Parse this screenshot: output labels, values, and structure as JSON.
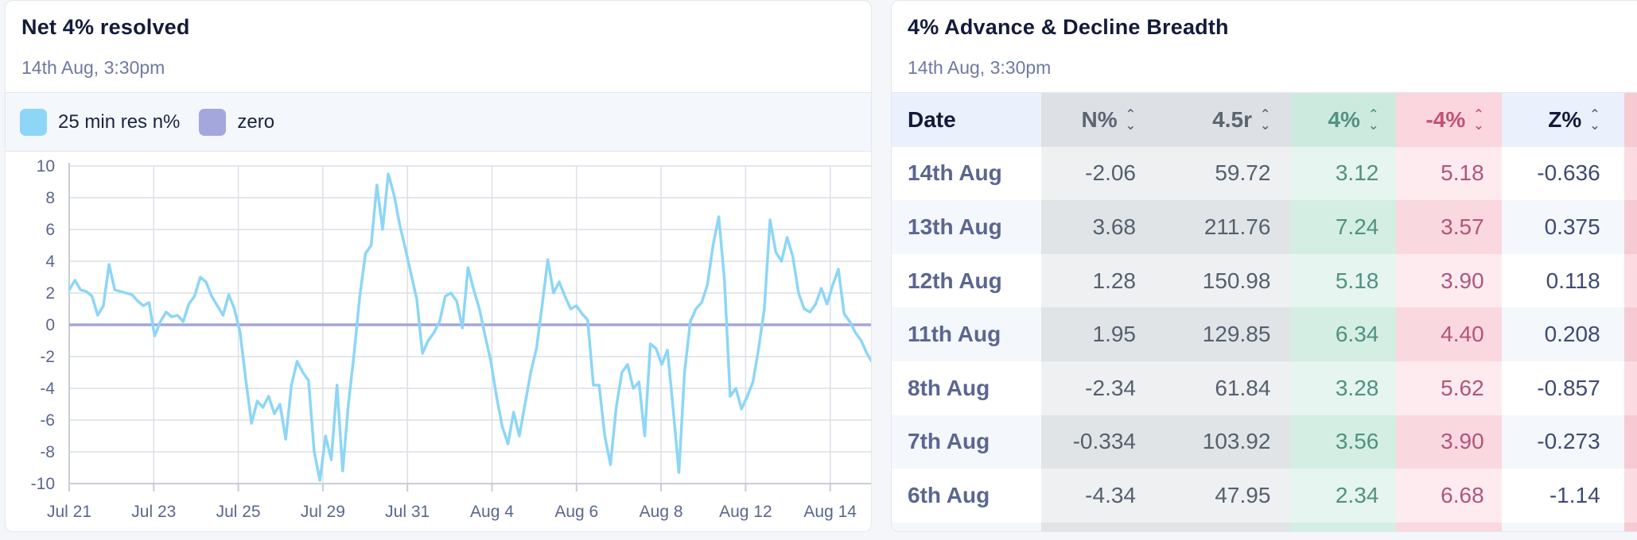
{
  "left_panel": {
    "title": "Net 4% resolved",
    "subtitle": "14th Aug, 3:30pm",
    "legend": [
      {
        "label": "25 min res n%",
        "color": "#8dd6f7"
      },
      {
        "label": "zero",
        "color": "#a3a7db"
      }
    ]
  },
  "chart_data": {
    "type": "line",
    "y_ticks": [
      "10",
      "8",
      "6",
      "4",
      "2",
      "0",
      "-2",
      "-4",
      "-6",
      "-8",
      "-10"
    ],
    "x_ticks": [
      "Jul 21",
      "Jul 23",
      "Jul 25",
      "Jul 29",
      "Jul 31",
      "Aug 4",
      "Aug 6",
      "Aug 8",
      "Aug 12",
      "Aug 14"
    ],
    "ylim": [
      -10,
      10
    ],
    "grid": true,
    "series": [
      {
        "name": "25 min res n%",
        "color": "#8dd6f7",
        "values": [
          2.2,
          2.8,
          2.2,
          2.1,
          1.8,
          0.6,
          1.2,
          3.8,
          2.2,
          2.1,
          2.0,
          1.9,
          1.5,
          1.2,
          1.4,
          -0.7,
          0.2,
          0.8,
          0.5,
          0.6,
          0.2,
          1.3,
          1.8,
          3.0,
          2.7,
          1.8,
          1.2,
          0.6,
          1.9,
          1.0,
          -0.5,
          -3.5,
          -6.2,
          -4.8,
          -5.2,
          -4.5,
          -5.6,
          -5.0,
          -7.2,
          -3.8,
          -2.3,
          -3.0,
          -3.5,
          -8.0,
          -9.8,
          -7.0,
          -8.5,
          -3.8,
          -9.2,
          -5.0,
          -1.8,
          1.8,
          4.5,
          5.0,
          8.8,
          6.0,
          9.5,
          8.2,
          6.3,
          4.8,
          3.2,
          1.6,
          -1.8,
          -1.0,
          -0.5,
          0.2,
          1.8,
          2.0,
          1.5,
          -0.2,
          3.6,
          2.2,
          1.0,
          -0.7,
          -2.3,
          -4.5,
          -6.4,
          -7.5,
          -5.5,
          -7.0,
          -5.0,
          -3.0,
          -1.5,
          1.2,
          4.1,
          2.0,
          2.7,
          1.8,
          1.0,
          1.2,
          0.7,
          0.3,
          -3.8,
          -3.8,
          -7.0,
          -8.8,
          -5.2,
          -3.0,
          -2.5,
          -4.0,
          -3.6,
          -7.0,
          -1.2,
          -1.5,
          -2.5,
          -1.6,
          -5.3,
          -9.3,
          -3.0,
          0.2,
          1.0,
          1.4,
          2.5,
          5.0,
          6.8,
          2.8,
          -4.5,
          -4.0,
          -5.3,
          -4.5,
          -3.6,
          -1.5,
          1.0,
          6.6,
          4.6,
          4.0,
          5.5,
          4.3,
          2.0,
          1.0,
          0.8,
          1.3,
          2.3,
          1.3,
          2.5,
          3.5,
          0.7,
          0.2,
          -0.5,
          -1.0,
          -1.8,
          -2.4
        ]
      },
      {
        "name": "zero",
        "color": "#a3a7db",
        "values": [
          0,
          0
        ]
      }
    ]
  },
  "right_panel": {
    "title": "4% Advance & Decline Breadth",
    "subtitle": "14th Aug, 3:30pm",
    "columns": [
      "Date",
      "N%",
      "4.5r",
      "4%",
      "-4%",
      "Z%"
    ],
    "rows": [
      [
        "14th Aug",
        "-2.06",
        "59.72",
        "3.12",
        "5.18",
        "-0.636"
      ],
      [
        "13th Aug",
        "3.68",
        "211.76",
        "7.24",
        "3.57",
        "0.375"
      ],
      [
        "12th Aug",
        "1.28",
        "150.98",
        "5.18",
        "3.90",
        "0.118"
      ],
      [
        "11th Aug",
        "1.95",
        "129.85",
        "6.34",
        "4.40",
        "0.208"
      ],
      [
        "8th Aug",
        "-2.34",
        "61.84",
        "3.28",
        "5.62",
        "-0.857"
      ],
      [
        "7th Aug",
        "-0.334",
        "103.92",
        "3.56",
        "3.90",
        "-0.273"
      ],
      [
        "6th Aug",
        "-4.34",
        "47.95",
        "2.34",
        "6.68",
        "-1.14"
      ]
    ]
  }
}
